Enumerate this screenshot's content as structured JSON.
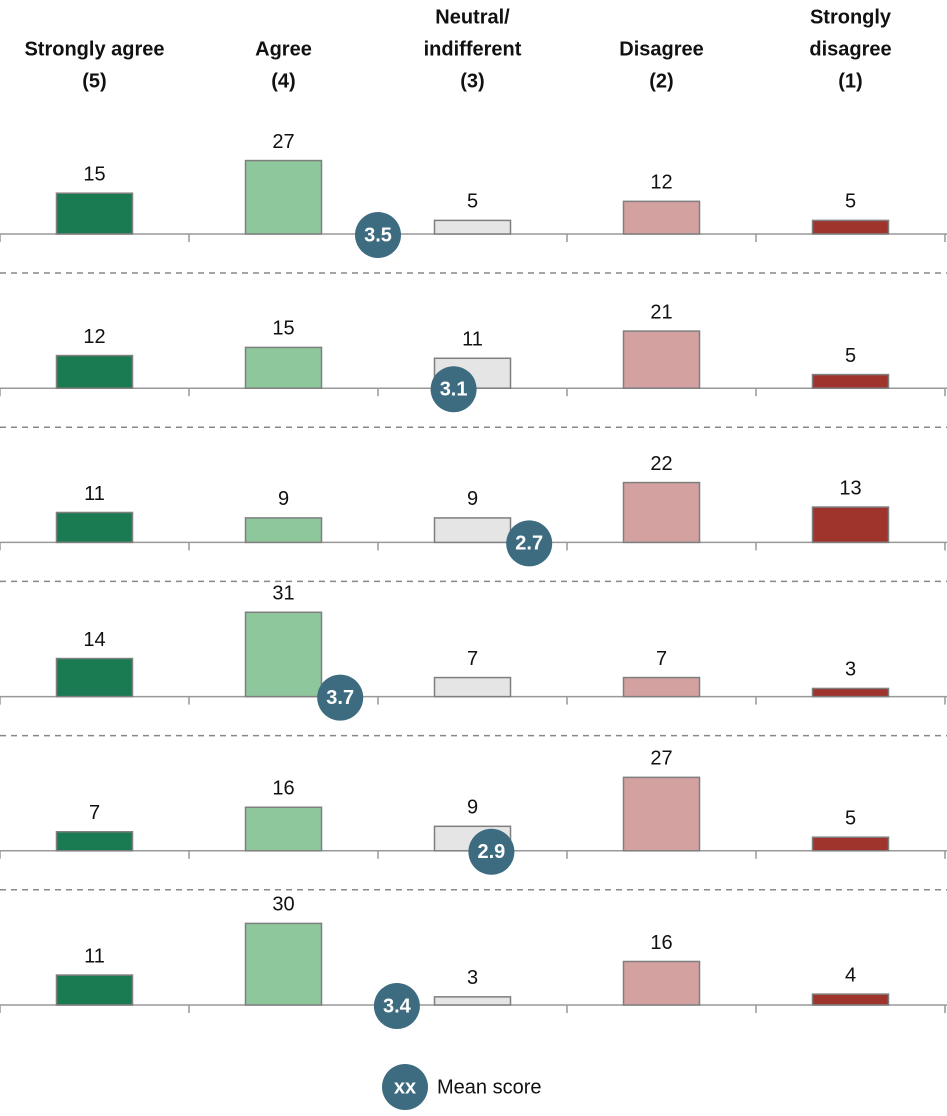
{
  "chart_data": {
    "type": "bar",
    "categories": [
      [
        "Strongly agree",
        "(5)"
      ],
      [
        "Agree",
        "(4)"
      ],
      [
        "Neutral/",
        "indifferent",
        "(3)"
      ],
      [
        "Disagree",
        "(2)"
      ],
      [
        "Strongly",
        "disagree",
        "(1)"
      ]
    ],
    "scores": [
      5,
      4,
      3,
      2,
      1
    ],
    "colors": [
      "#1a7a52",
      "#8fc79d",
      "#e5e5e5",
      "#d4a1a1",
      "#9e342b"
    ],
    "mean_color": "#3d6b80",
    "rows": [
      {
        "values": [
          15,
          27,
          5,
          12,
          5
        ],
        "mean": 3.5
      },
      {
        "values": [
          12,
          15,
          11,
          21,
          5
        ],
        "mean": 3.1
      },
      {
        "values": [
          11,
          9,
          9,
          22,
          13
        ],
        "mean": 2.7
      },
      {
        "values": [
          14,
          31,
          7,
          7,
          3
        ],
        "mean": 3.7
      },
      {
        "values": [
          7,
          16,
          9,
          27,
          5
        ],
        "mean": 2.9
      },
      {
        "values": [
          11,
          30,
          3,
          16,
          4
        ],
        "mean": 3.4
      }
    ],
    "legend": {
      "marker": "xx",
      "label": "Mean score"
    }
  }
}
